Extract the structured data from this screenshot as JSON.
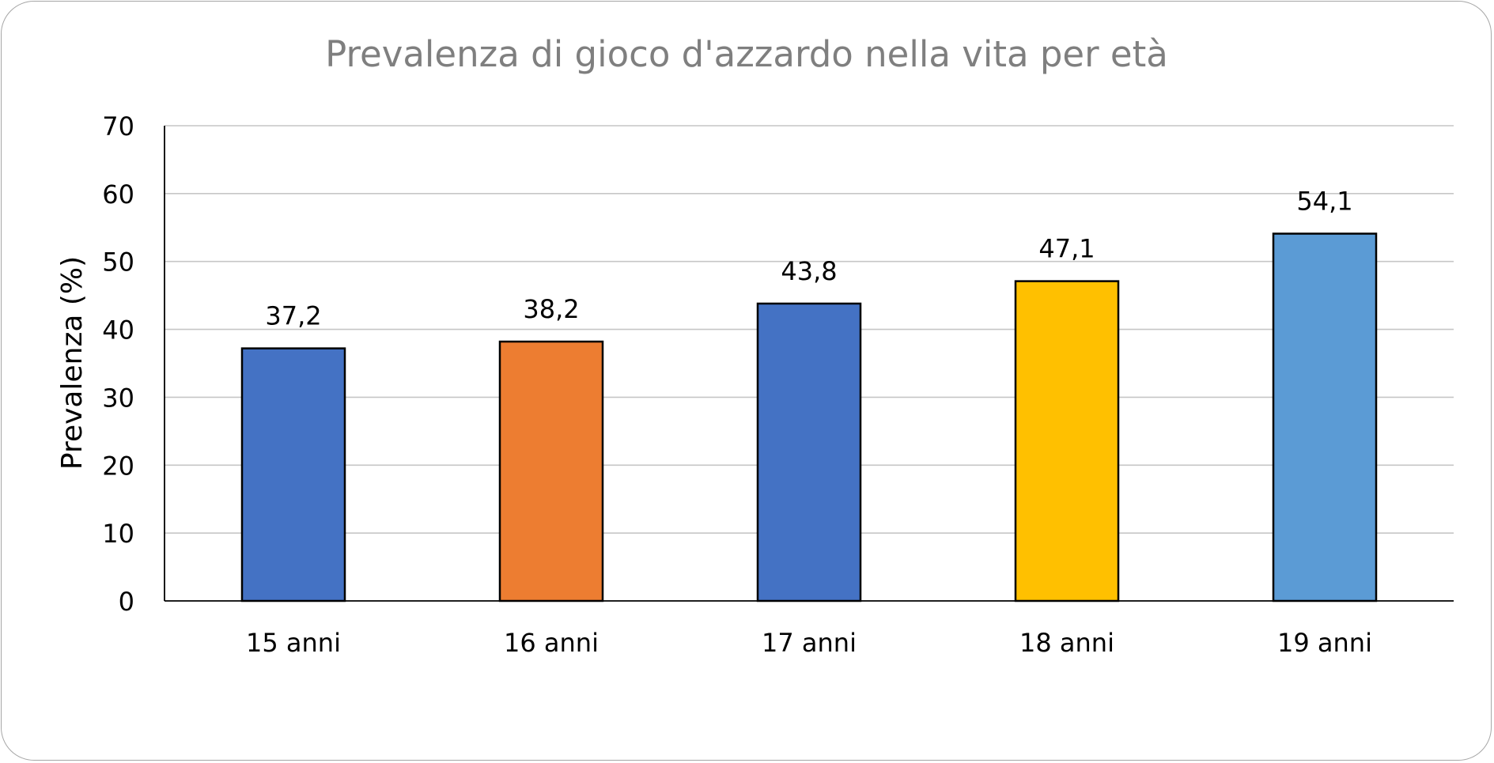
{
  "chart_data": {
    "type": "bar",
    "title": "Prevalenza di gioco d'azzardo nella vita per età",
    "xlabel": "",
    "ylabel": "Prevalenza (%)",
    "categories": [
      "15 anni",
      "16 anni",
      "17 anni",
      "18 anni",
      "19 anni"
    ],
    "values": [
      37.2,
      38.2,
      43.8,
      47.1,
      54.1
    ],
    "value_labels": [
      "37,2",
      "38,2",
      "43,8",
      "47,1",
      "54,1"
    ],
    "bar_colors": [
      "#4472c4",
      "#ed7d31",
      "#4472c4",
      "#ffc000",
      "#5b9bd5"
    ],
    "ylim": [
      0,
      70
    ],
    "yticks": [
      0,
      10,
      20,
      30,
      40,
      50,
      60,
      70
    ],
    "grid": true,
    "legend": "none"
  }
}
